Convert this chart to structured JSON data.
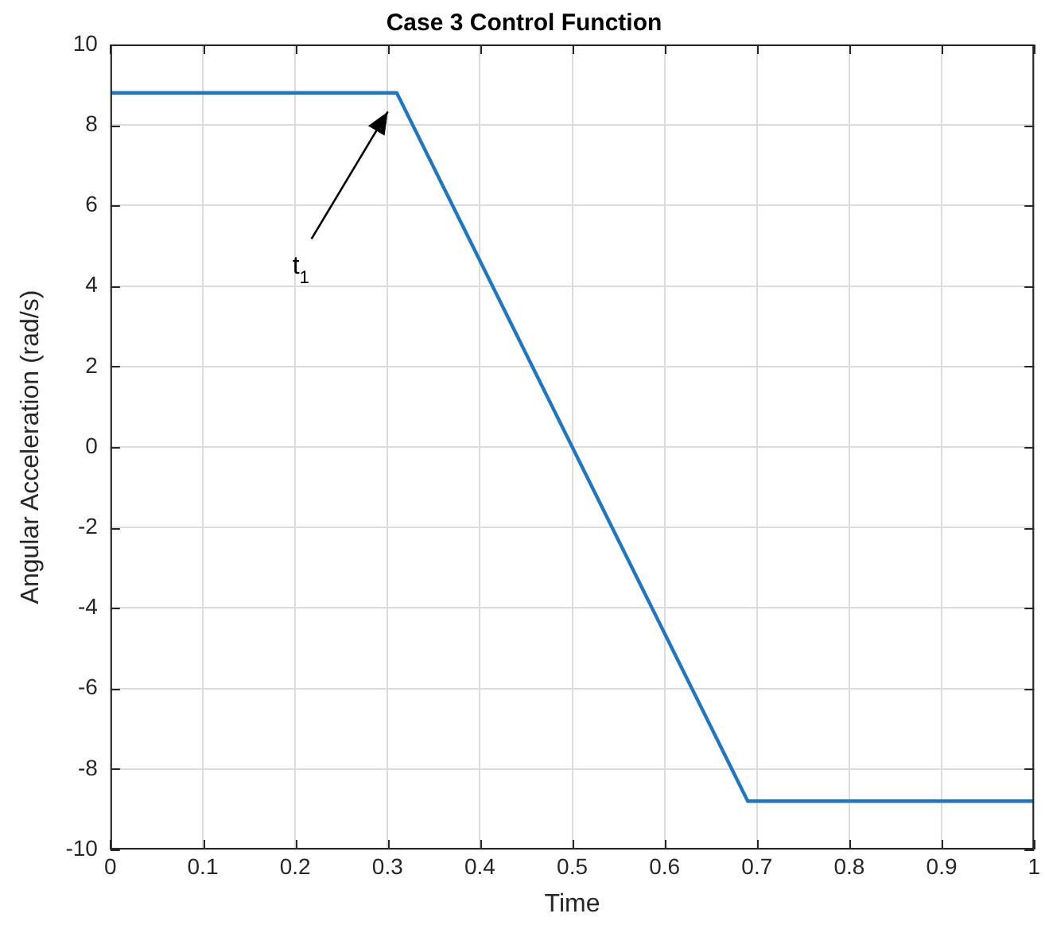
{
  "chart_data": {
    "type": "line",
    "title": "Case 3 Control Function",
    "xlabel": "Time",
    "ylabel": "Angular Acceleration (rad/s)",
    "x": [
      0,
      0.31,
      0.69,
      1
    ],
    "series": [
      {
        "color": "#1f77c4",
        "values": [
          8.8,
          8.8,
          -8.8,
          -8.8
        ]
      }
    ],
    "xlim": [
      0,
      1
    ],
    "xticks": [
      0,
      0.1,
      0.2,
      0.3,
      0.4,
      0.5,
      0.6,
      0.7,
      0.8,
      0.9,
      1
    ],
    "ylim": [
      -10,
      10
    ],
    "yticks": [
      -10,
      -8,
      -6,
      -4,
      -2,
      0,
      2,
      4,
      6,
      8,
      10
    ],
    "grid": true,
    "legend": false,
    "marker": "none",
    "line_style": "solid",
    "annotations": [
      "t$_{1}$"
    ]
  }
}
